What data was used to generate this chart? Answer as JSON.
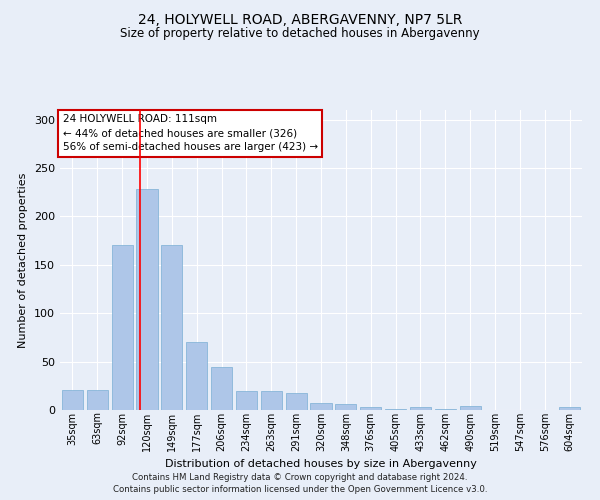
{
  "title1": "24, HOLYWELL ROAD, ABERGAVENNY, NP7 5LR",
  "title2": "Size of property relative to detached houses in Abergavenny",
  "xlabel": "Distribution of detached houses by size in Abergavenny",
  "ylabel": "Number of detached properties",
  "footer1": "Contains HM Land Registry data © Crown copyright and database right 2024.",
  "footer2": "Contains public sector information licensed under the Open Government Licence v3.0.",
  "categories": [
    "35sqm",
    "63sqm",
    "92sqm",
    "120sqm",
    "149sqm",
    "177sqm",
    "206sqm",
    "234sqm",
    "263sqm",
    "291sqm",
    "320sqm",
    "348sqm",
    "376sqm",
    "405sqm",
    "433sqm",
    "462sqm",
    "490sqm",
    "519sqm",
    "547sqm",
    "576sqm",
    "604sqm"
  ],
  "values": [
    21,
    21,
    170,
    228,
    170,
    70,
    44,
    20,
    20,
    18,
    7,
    6,
    3,
    1,
    3,
    1,
    4,
    0,
    0,
    0,
    3
  ],
  "bar_color": "#aec6e8",
  "bar_edge_color": "#7aafd4",
  "bg_color": "#e8eef8",
  "grid_color": "#ffffff",
  "red_line_x": 2.72,
  "annotation_text": "24 HOLYWELL ROAD: 111sqm\n← 44% of detached houses are smaller (326)\n56% of semi-detached houses are larger (423) →",
  "annotation_box_color": "#ffffff",
  "annotation_border_color": "#cc0000",
  "ylim": [
    0,
    310
  ],
  "yticks": [
    0,
    50,
    100,
    150,
    200,
    250,
    300
  ]
}
